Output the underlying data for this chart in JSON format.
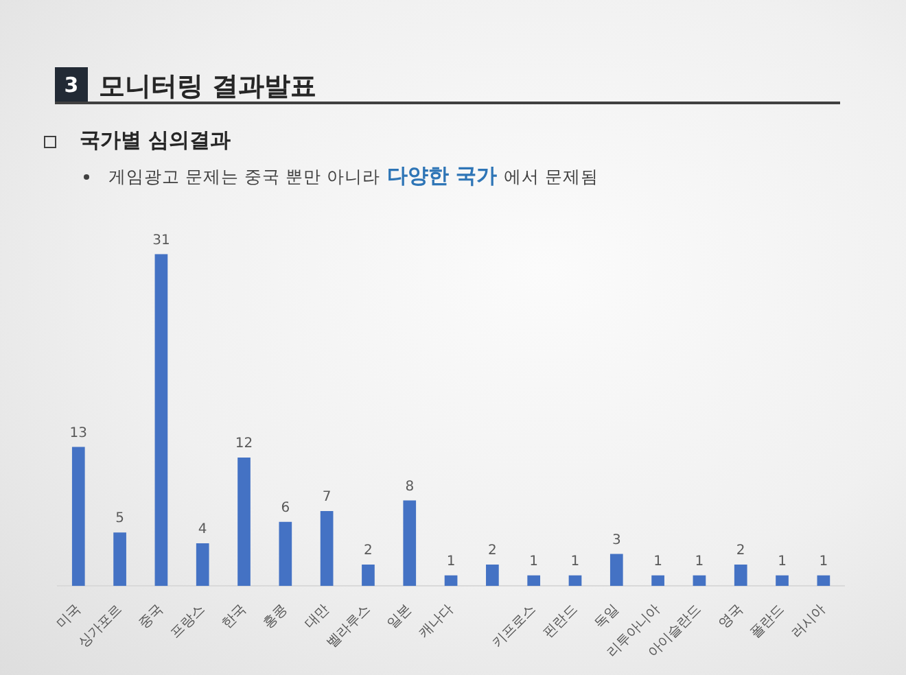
{
  "chart_data": {
    "type": "bar",
    "title": "모니터링 결과발표",
    "subtitle": "국가별 심의결과",
    "annotations": [
      "3",
      "게임광고 문제는 중국 뿐만 아니라",
      "다양한 국가",
      "에서 문제됨"
    ],
    "categories": [
      "미국",
      "싱가포르",
      "중국",
      "프랑스",
      "한국",
      "홍콩",
      "대만",
      "벨라루스",
      "일본",
      "캐나다",
      null,
      "키프로스",
      "핀란드",
      "독일",
      "리투아니아",
      "아이슬란드",
      "영국",
      "폴란드",
      "러시아"
    ],
    "values": [
      13,
      5,
      31,
      4,
      12,
      6,
      7,
      2,
      8,
      1,
      2,
      1,
      1,
      3,
      1,
      1,
      2,
      1,
      1
    ],
    "color": "#4472c4",
    "data_labels": true,
    "grid": false,
    "legend": false,
    "tick_labels": "x"
  }
}
